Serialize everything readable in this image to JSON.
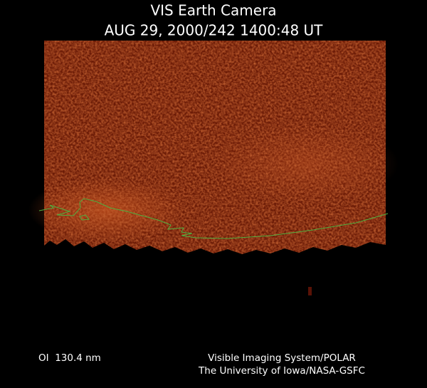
{
  "header": {
    "title": "VIS Earth Camera",
    "subtitle": "AUG 29, 2000/242 1400:48 UT"
  },
  "footer": {
    "filter": "OI  130.4 nm",
    "credit_line1": "Visible Imaging System/POLAR",
    "credit_line2": "The University of Iowa/NASA-GSFC"
  }
}
